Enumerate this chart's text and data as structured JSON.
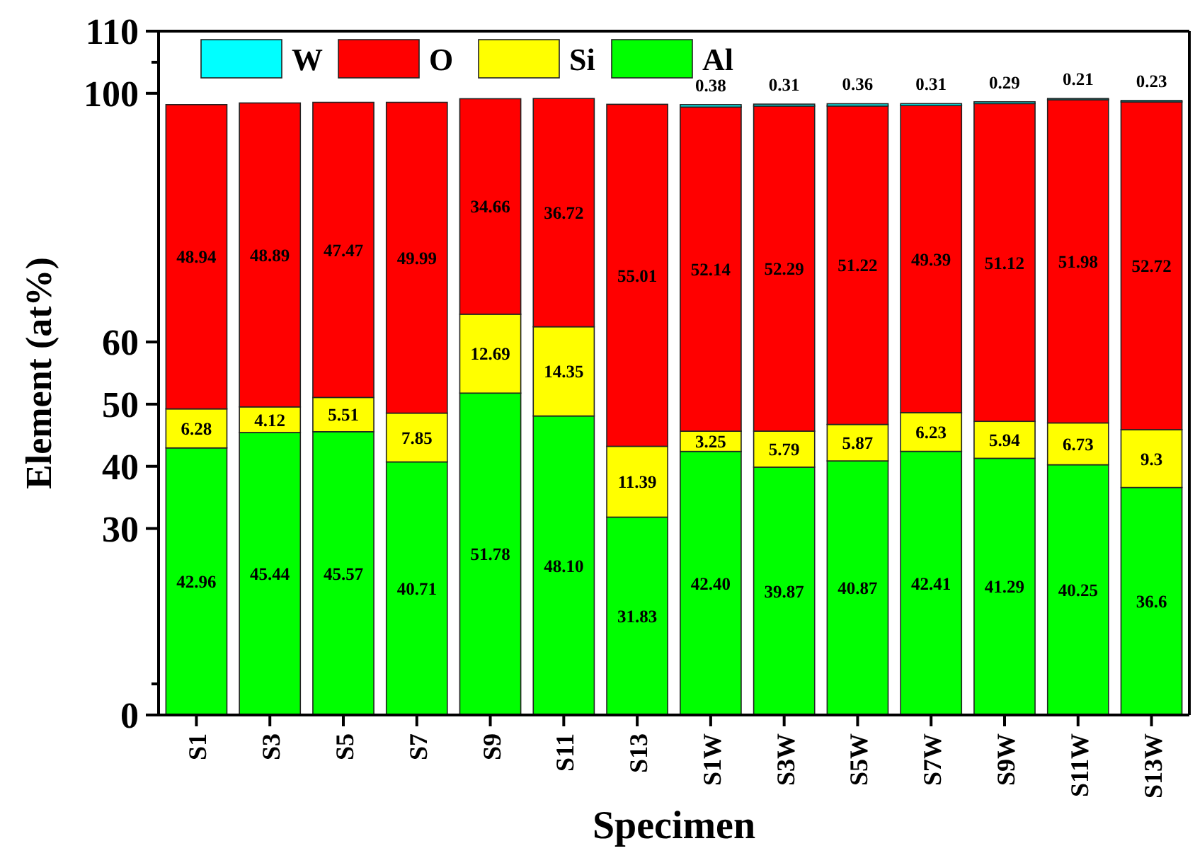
{
  "chart_data": {
    "type": "bar",
    "stacked": true,
    "xlabel": "Specimen",
    "ylabel": "Element (at%)",
    "categories": [
      "S1",
      "S3",
      "S5",
      "S7",
      "S9",
      "S11",
      "S13",
      "S1W",
      "S3W",
      "S5W",
      "S7W",
      "S9W",
      "S11W",
      "S13W"
    ],
    "series": [
      {
        "name": "Al",
        "color": "#00ff00",
        "values": [
          42.96,
          45.44,
          45.57,
          40.71,
          51.78,
          48.1,
          31.83,
          42.4,
          39.87,
          40.87,
          42.41,
          41.29,
          40.25,
          36.6
        ],
        "value_labels": [
          "42.96",
          "45.44",
          "45.57",
          "40.71",
          "51.78",
          "48.10",
          "31.83",
          "42.40",
          "39.87",
          "40.87",
          "42.41",
          "41.29",
          "40.25",
          "36.6"
        ]
      },
      {
        "name": "Si",
        "color": "#ffff00",
        "values": [
          6.28,
          4.12,
          5.51,
          7.85,
          12.69,
          14.35,
          11.39,
          3.25,
          5.79,
          5.87,
          6.23,
          5.94,
          6.73,
          9.3
        ],
        "value_labels": [
          "6.28",
          "4.12",
          "5.51",
          "7.85",
          "12.69",
          "14.35",
          "11.39",
          "3.25",
          "5.79",
          "5.87",
          "6.23",
          "5.94",
          "6.73",
          "9.3"
        ]
      },
      {
        "name": "O",
        "color": "#ff0000",
        "values": [
          48.94,
          48.89,
          47.47,
          49.99,
          34.66,
          36.72,
          55.01,
          52.14,
          52.29,
          51.22,
          49.39,
          51.12,
          51.98,
          52.72
        ],
        "value_labels": [
          "48.94",
          "48.89",
          "47.47",
          "49.99",
          "34.66",
          "36.72",
          "55.01",
          "52.14",
          "52.29",
          "51.22",
          "49.39",
          "51.12",
          "51.98",
          "52.72"
        ]
      },
      {
        "name": "W",
        "color": "#00ffff",
        "values": [
          null,
          null,
          null,
          null,
          null,
          null,
          null,
          0.38,
          0.31,
          0.36,
          0.31,
          0.29,
          0.21,
          0.23
        ],
        "value_labels": [
          null,
          null,
          null,
          null,
          null,
          null,
          null,
          "0.38",
          "0.31",
          "0.36",
          "0.31",
          "0.29",
          "0.21",
          "0.23"
        ]
      }
    ],
    "ylim": [
      0,
      110
    ],
    "yticks": [
      0,
      {
        "value": 5,
        "label": null
      },
      30,
      40,
      50,
      60,
      100,
      {
        "value": 105,
        "label": null
      },
      110
    ],
    "legend": "top left",
    "grid": false
  }
}
